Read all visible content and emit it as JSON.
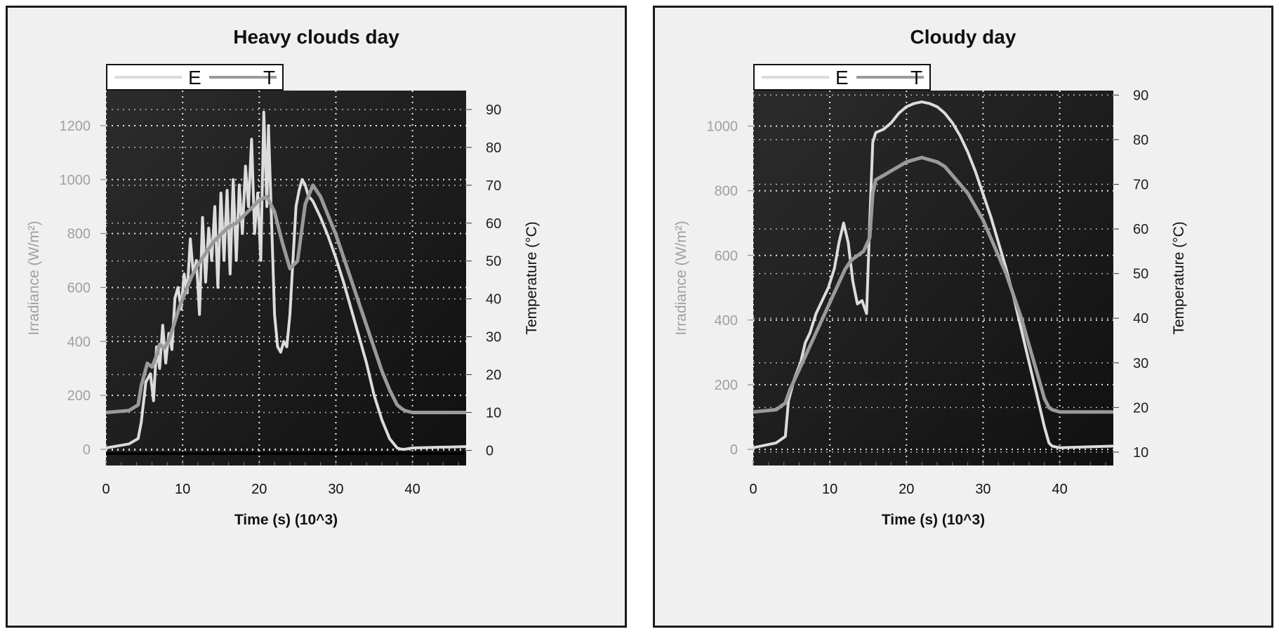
{
  "colors": {
    "irradiance": "#dcdcdc",
    "temperature": "#9a9a9a",
    "plot_bg": "#101010",
    "grid": "#e8e8e8",
    "left_axis_text": "#a0a0a0",
    "right_axis_text": "#202020"
  },
  "chart_data": [
    {
      "type": "line",
      "title": "Heavy clouds day",
      "xlabel": "Time (s) (10^3)",
      "ylabel": "Irradiance (W/m²)",
      "y2label": "Temperature  (°C)",
      "xlim": [
        0,
        47
      ],
      "ylim": [
        -60,
        1330
      ],
      "y2lim": [
        -4,
        95
      ],
      "xticks": [
        "0",
        "10",
        "20",
        "30",
        "40"
      ],
      "yticks": [
        "0",
        "200",
        "400",
        "600",
        "800",
        "1000",
        "1200"
      ],
      "y2ticks": [
        "0",
        "10",
        "20",
        "30",
        "40",
        "50",
        "60",
        "70",
        "80",
        "90"
      ],
      "legend": [
        "E",
        "T"
      ],
      "legend_position": "top-left",
      "grid": true,
      "series": [
        {
          "name": "E",
          "axis": "left",
          "x": [
            0,
            3.0,
            4.2,
            4.6,
            5.2,
            5.8,
            6.2,
            6.6,
            7.0,
            7.4,
            7.8,
            8.2,
            8.6,
            9.0,
            9.4,
            9.8,
            10.2,
            10.6,
            11.0,
            11.4,
            11.8,
            12.2,
            12.6,
            13.0,
            13.4,
            13.8,
            14.2,
            14.6,
            15.0,
            15.4,
            15.8,
            16.2,
            16.6,
            17.0,
            17.4,
            17.8,
            18.2,
            18.6,
            19.0,
            19.4,
            19.8,
            20.2,
            20.6,
            21.0,
            21.2,
            21.6,
            22.0,
            22.4,
            22.8,
            23.2,
            23.6,
            24.0,
            24.4,
            24.8,
            25.2,
            25.6,
            26.0,
            26.4,
            27.0,
            28.0,
            29.0,
            30.0,
            31.0,
            32.0,
            33.0,
            34.0,
            35.0,
            36.0,
            37.0,
            38.0,
            38.6,
            39.0,
            40.0,
            47.0
          ],
          "y": [
            5,
            20,
            40,
            100,
            250,
            280,
            180,
            380,
            300,
            460,
            320,
            430,
            370,
            560,
            600,
            520,
            650,
            580,
            780,
            650,
            700,
            500,
            860,
            620,
            820,
            700,
            900,
            600,
            950,
            700,
            960,
            650,
            1000,
            700,
            980,
            800,
            1050,
            900,
            1150,
            800,
            950,
            700,
            1250,
            900,
            1200,
            850,
            500,
            380,
            360,
            400,
            380,
            500,
            700,
            900,
            960,
            1000,
            980,
            940,
            920,
            860,
            790,
            710,
            620,
            520,
            420,
            320,
            200,
            110,
            40,
            5,
            0,
            0,
            5,
            10
          ]
        },
        {
          "name": "T",
          "axis": "right",
          "x": [
            0,
            3.0,
            4.2,
            4.6,
            5.4,
            6.0,
            6.6,
            7.0,
            7.6,
            8.2,
            9.0,
            9.6,
            10.4,
            11.2,
            12.0,
            13.0,
            14.0,
            15.0,
            16.0,
            17.0,
            18.0,
            19.0,
            20.0,
            21.0,
            22.0,
            23.0,
            24.0,
            25.0,
            26.0,
            27.0,
            28.0,
            29.0,
            30.0,
            31.0,
            32.0,
            33.0,
            34.0,
            35.0,
            36.0,
            37.0,
            38.0,
            38.6,
            39.0,
            40.0,
            47.0
          ],
          "y": [
            10,
            10.5,
            12,
            17,
            23,
            22,
            25,
            28,
            27,
            29,
            34,
            38,
            42,
            46,
            49,
            52,
            55,
            57,
            59,
            60,
            62,
            64,
            66,
            67,
            63,
            55,
            48,
            50,
            65,
            70,
            67,
            62,
            57,
            51,
            45,
            39,
            33,
            27,
            21,
            16,
            12,
            11,
            10.5,
            10,
            10
          ]
        }
      ]
    },
    {
      "type": "line",
      "title": "Cloudy day",
      "xlabel": "Time (s) (10^3)",
      "ylabel": "Irradiance (W/m²)",
      "y2label": "Temperature  (°C)",
      "xlim": [
        0,
        47
      ],
      "ylim": [
        -50,
        1110
      ],
      "y2lim": [
        7,
        91
      ],
      "xticks": [
        "0",
        "10",
        "20",
        "30",
        "40"
      ],
      "yticks": [
        "0",
        "200",
        "400",
        "600",
        "800",
        "1000"
      ],
      "y2ticks": [
        "10",
        "20",
        "30",
        "40",
        "50",
        "60",
        "70",
        "80",
        "90"
      ],
      "legend": [
        "E",
        "T"
      ],
      "legend_position": "top-left",
      "grid": true,
      "series": [
        {
          "name": "E",
          "axis": "left",
          "x": [
            0,
            3.0,
            4.2,
            4.6,
            5.4,
            6.2,
            6.8,
            7.4,
            8.2,
            9.0,
            9.8,
            10.6,
            11.2,
            11.8,
            12.4,
            13.0,
            13.6,
            14.2,
            14.8,
            15.2,
            15.6,
            16.0,
            17.0,
            18.0,
            19.0,
            20.0,
            21.0,
            22.0,
            23.0,
            24.0,
            25.0,
            26.0,
            27.0,
            28.0,
            29.0,
            30.0,
            31.0,
            32.0,
            33.0,
            34.0,
            35.0,
            36.0,
            37.0,
            38.0,
            38.6,
            39.0,
            40.0,
            47.0
          ],
          "y": [
            5,
            20,
            40,
            150,
            220,
            270,
            330,
            360,
            420,
            460,
            500,
            560,
            640,
            700,
            640,
            520,
            450,
            460,
            420,
            700,
            950,
            980,
            990,
            1010,
            1040,
            1060,
            1070,
            1075,
            1070,
            1060,
            1040,
            1010,
            970,
            920,
            860,
            790,
            720,
            640,
            560,
            470,
            370,
            270,
            170,
            70,
            20,
            10,
            5,
            10
          ]
        },
        {
          "name": "T",
          "axis": "right",
          "x": [
            0,
            3.0,
            4.2,
            4.8,
            5.6,
            6.4,
            7.2,
            8.0,
            8.8,
            9.6,
            10.4,
            11.2,
            12.0,
            12.8,
            13.6,
            14.4,
            15.2,
            15.6,
            16.0,
            17.0,
            18.0,
            19.0,
            20.0,
            21.0,
            22.0,
            23.0,
            24.0,
            25.0,
            26.0,
            27.0,
            28.0,
            29.0,
            30.0,
            31.0,
            32.0,
            33.0,
            34.0,
            35.0,
            36.0,
            37.0,
            38.0,
            38.6,
            39.0,
            40.0,
            47.0
          ],
          "y": [
            19,
            19.5,
            21,
            24,
            27,
            30,
            33,
            36,
            39,
            42,
            45,
            48,
            51,
            53,
            54,
            55,
            58,
            68,
            71,
            72,
            73,
            74,
            75,
            75.5,
            76,
            75.5,
            75,
            74,
            72,
            70,
            68,
            65,
            62,
            58,
            54,
            50,
            45,
            40,
            34,
            28,
            22,
            20,
            19.5,
            19,
            19
          ]
        }
      ]
    }
  ]
}
